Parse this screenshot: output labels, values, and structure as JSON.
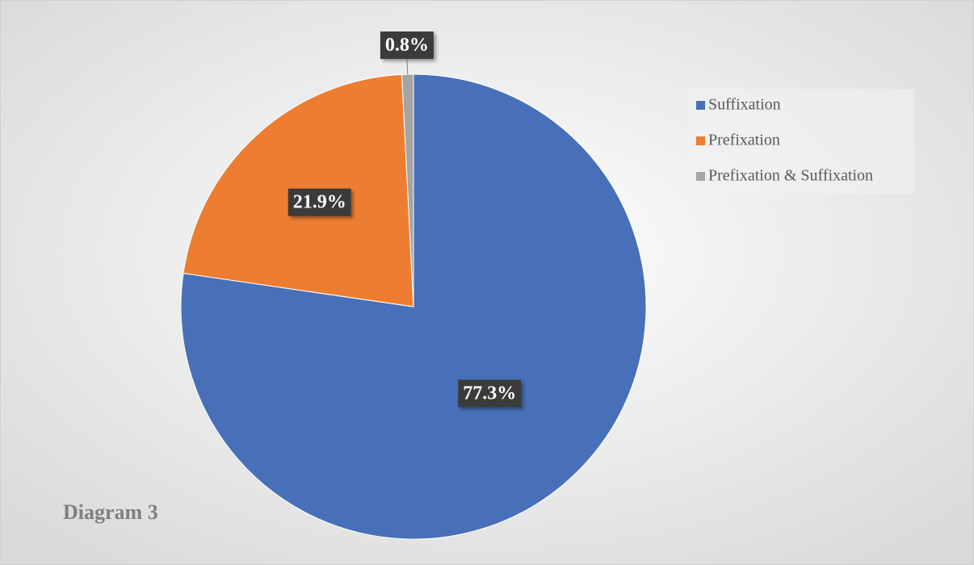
{
  "chart_data": {
    "type": "pie",
    "title": "Diagram 3",
    "categories": [
      "Suffixation",
      "Prefixation",
      "Prefixation & Suffixation"
    ],
    "values": [
      77.3,
      21.9,
      0.8
    ],
    "value_labels": [
      "77.3%",
      "21.9%",
      "0.8%"
    ],
    "colors": [
      "#4870b8",
      "#ed7d31",
      "#a5a5a5"
    ],
    "legend": "right"
  }
}
